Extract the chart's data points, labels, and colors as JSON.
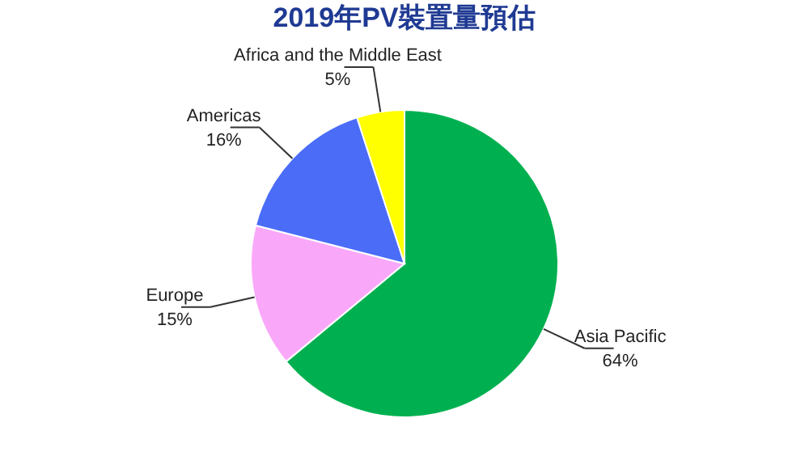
{
  "chart_data": {
    "type": "pie",
    "title": "2019年PV裝置量預估",
    "categories": [
      "Asia Pacific",
      "Europe",
      "Americas",
      "Africa and the Middle East"
    ],
    "values": [
      64,
      15,
      16,
      5
    ],
    "colors": [
      "#00b050",
      "#f9a8f9",
      "#4a6cf7",
      "#ffff00"
    ],
    "value_labels": [
      "64%",
      "15%",
      "16%",
      "5%"
    ]
  }
}
